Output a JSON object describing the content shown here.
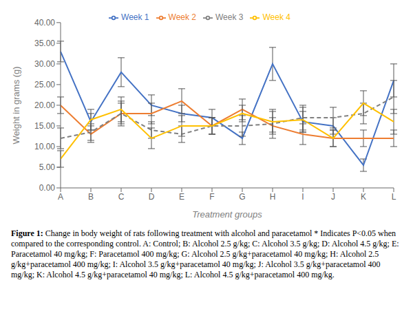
{
  "chart_data": {
    "type": "line",
    "categories": [
      "A",
      "B",
      "C",
      "D",
      "E",
      "F",
      "G",
      "H",
      "I",
      "J",
      "K",
      "L"
    ],
    "series": [
      {
        "name": "Week 1",
        "color": "#4472C4",
        "line_style": "solid",
        "values": [
          33.0,
          16.0,
          28.0,
          20.0,
          18.0,
          17.0,
          12.0,
          30.0,
          16.0,
          15.0,
          5.5,
          26.0
        ],
        "errors": [
          2.5,
          2.0,
          3.5,
          2.5,
          2.0,
          2.0,
          1.5,
          4.0,
          2.5,
          2.0,
          1.5,
          4.0
        ]
      },
      {
        "name": "Week 2",
        "color": "#ED7D31",
        "line_style": "solid",
        "values": [
          20.0,
          13.0,
          18.0,
          18.0,
          21.0,
          15.0,
          19.0,
          15.0,
          13.0,
          12.0,
          12.0,
          12.0
        ],
        "errors": [
          2.0,
          2.0,
          2.5,
          2.5,
          3.0,
          2.0,
          2.5,
          2.0,
          2.5,
          2.0,
          2.0,
          2.0
        ]
      },
      {
        "name": "Week 3",
        "color": "#808080",
        "line_style": "dashed",
        "values": [
          12.0,
          13.5,
          18.0,
          14.0,
          13.0,
          15.0,
          15.0,
          15.5,
          17.0,
          17.0,
          18.0,
          22.0
        ],
        "errors": [
          2.5,
          2.0,
          3.0,
          2.0,
          2.0,
          2.0,
          2.5,
          3.5,
          3.0,
          2.5,
          2.5,
          4.0
        ]
      },
      {
        "name": "Week 4",
        "color": "#FFC000",
        "line_style": "solid",
        "values": [
          7.0,
          16.5,
          19.0,
          12.0,
          15.0,
          15.0,
          18.0,
          16.0,
          16.5,
          12.0,
          20.5,
          16.0
        ],
        "errors": [
          2.0,
          2.5,
          3.0,
          2.5,
          2.5,
          2.0,
          2.0,
          2.5,
          3.0,
          2.0,
          3.0,
          3.0
        ]
      }
    ],
    "xlabel": "Treatment groups",
    "ylabel": "Weight in grams (g)",
    "ylim": [
      0.0,
      40.0
    ],
    "yticks": [
      {
        "value": 0.0,
        "label": "0.00"
      },
      {
        "value": 5.0,
        "label": "5.00"
      },
      {
        "value": 10.0,
        "label": "10.00"
      },
      {
        "value": 15.0,
        "label": "15.00"
      },
      {
        "value": 20.0,
        "label": "20.00"
      },
      {
        "value": 25.0,
        "label": "25.00"
      },
      {
        "value": 30.0,
        "label": "30.00"
      },
      {
        "value": 35.0,
        "label": "35.00"
      },
      {
        "value": 40.0,
        "label": "40.00"
      }
    ],
    "grid": false,
    "legend": "top",
    "annotations": [
      "Figure 1:",
      " Change in body weight of rats following treatment with alcohol and paracetamol * Indicates P<0.05 when compared to the corresponding control. A: Control; B: Alcohol 2.5 g/kg; C: Alcohol 3.5 g/kg; D: Alcohol 4.5 g/kg; E: Paracetamol 40 mg/kg; F: Paracetamol 400 mg/kg; G: Alcohol 2.5 g/kg+paracetamol 40 mg/kg; H: Alcohol 2.5 g/kg+paracetamol 400 mg/kg; I: Alcohol 3.5 g/kg+paracetamol 40 mg/kg;  J: Alcohol 3.5 g/kg+paracetamol 400 mg/kg; K: Alcohol 4.5 g/kg+paracetamol 40 mg/kg; L: Alcohol 4.5 g/kg+paracetamol 400 mg/kg."
    ]
  }
}
